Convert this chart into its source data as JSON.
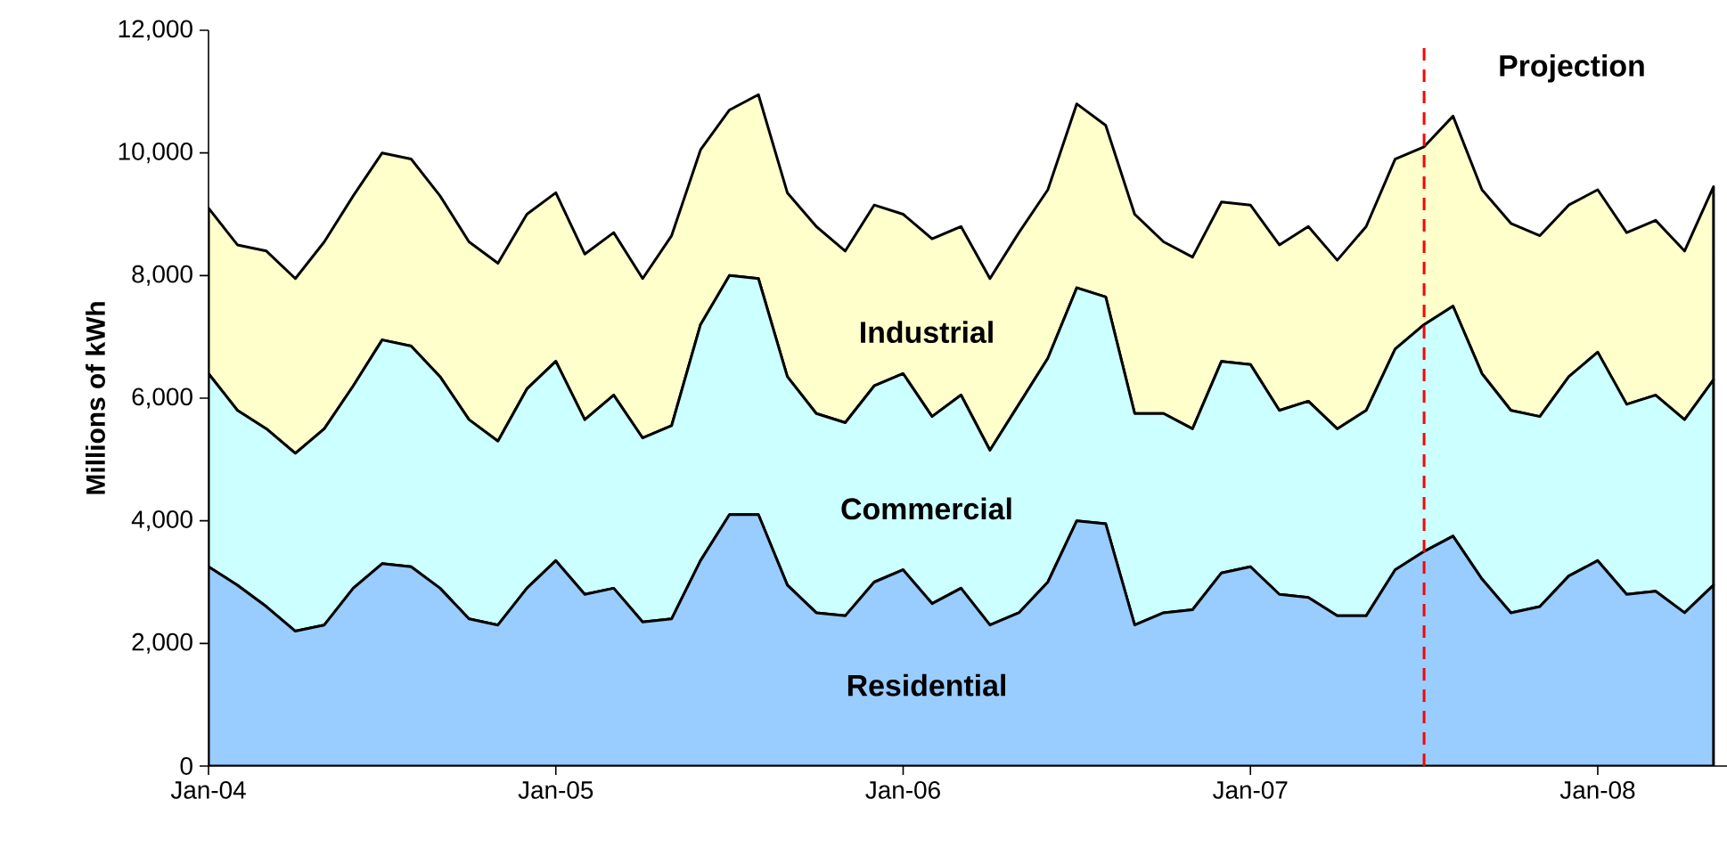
{
  "chart_data": {
    "type": "area",
    "stacked": true,
    "ylabel": "Millions of kWh",
    "legend": false,
    "grid": false,
    "marker": "none",
    "line_style": "solid",
    "x": [
      "2004-01",
      "2004-02",
      "2004-03",
      "2004-04",
      "2004-05",
      "2004-06",
      "2004-07",
      "2004-08",
      "2004-09",
      "2004-10",
      "2004-11",
      "2004-12",
      "2005-01",
      "2005-02",
      "2005-03",
      "2005-04",
      "2005-05",
      "2005-06",
      "2005-07",
      "2005-08",
      "2005-09",
      "2005-10",
      "2005-11",
      "2005-12",
      "2006-01",
      "2006-02",
      "2006-03",
      "2006-04",
      "2006-05",
      "2006-06",
      "2006-07",
      "2006-08",
      "2006-09",
      "2006-10",
      "2006-11",
      "2006-12",
      "2007-01",
      "2007-02",
      "2007-03",
      "2007-04",
      "2007-05",
      "2007-06",
      "2007-07",
      "2007-08",
      "2007-09",
      "2007-10",
      "2007-11",
      "2007-12",
      "2008-01",
      "2008-02",
      "2008-03",
      "2008-04",
      "2008-05"
    ],
    "xlim": [
      "2004-01",
      "2008-05-15"
    ],
    "xticks": [
      {
        "value": "2004-01",
        "label": "Jan-04"
      },
      {
        "value": "2005-01",
        "label": "Jan-05"
      },
      {
        "value": "2006-01",
        "label": "Jan-06"
      },
      {
        "value": "2007-01",
        "label": "Jan-07"
      },
      {
        "value": "2008-01",
        "label": "Jan-08"
      }
    ],
    "ylim": [
      0,
      12000
    ],
    "yticks": [
      0,
      {
        "value": 2000,
        "label": "2,000"
      },
      {
        "value": 4000,
        "label": "4,000"
      },
      {
        "value": 6000,
        "label": "6,000"
      },
      {
        "value": 8000,
        "label": "8,000"
      },
      {
        "value": 10000,
        "label": "10,000"
      },
      {
        "value": 12000,
        "label": "12,000"
      }
    ],
    "series": [
      {
        "name": "Residential",
        "color": "#99ccff",
        "values": [
          3250,
          2950,
          2600,
          2200,
          2300,
          2900,
          3300,
          3250,
          2900,
          2400,
          2300,
          2900,
          3350,
          2800,
          2900,
          2350,
          2400,
          3350,
          4100,
          4100,
          2950,
          2500,
          2450,
          3000,
          3200,
          2650,
          2900,
          2300,
          2500,
          3000,
          4000,
          3950,
          2300,
          2500,
          2550,
          3150,
          3250,
          2800,
          2750,
          2450,
          2450,
          3200,
          3500,
          3750,
          3050,
          2500,
          2600,
          3100,
          3350,
          2800,
          2850,
          2500,
          2950
        ]
      },
      {
        "name": "Commercial",
        "color": "#ccffff",
        "values": [
          3150,
          2850,
          2900,
          2900,
          3200,
          3300,
          3650,
          3600,
          3450,
          3250,
          3000,
          3250,
          3250,
          2850,
          3150,
          3000,
          3150,
          3850,
          3900,
          3850,
          3400,
          3250,
          3150,
          3200,
          3200,
          3050,
          3150,
          2850,
          3400,
          3650,
          3800,
          3700,
          3450,
          3250,
          2950,
          3450,
          3300,
          3000,
          3200,
          3050,
          3350,
          3600,
          3700,
          3750,
          3350,
          3300,
          3100,
          3250,
          3400,
          3100,
          3200,
          3150,
          3350
        ]
      },
      {
        "name": "Industrial",
        "color": "#ffffcc",
        "values": [
          2700,
          2700,
          2900,
          2850,
          3050,
          3100,
          3050,
          3050,
          2950,
          2900,
          2900,
          2850,
          2750,
          2700,
          2650,
          2600,
          3100,
          2850,
          2700,
          3000,
          3000,
          3050,
          2800,
          2950,
          2600,
          2900,
          2750,
          2800,
          2800,
          2750,
          3000,
          2800,
          3250,
          2800,
          2800,
          2600,
          2600,
          2700,
          2850,
          2750,
          3000,
          3100,
          2900,
          3100,
          3000,
          3050,
          2950,
          2800,
          2650,
          2800,
          2850,
          2750,
          3150
        ]
      }
    ],
    "ref_lines": [
      {
        "axis": "x",
        "value": "2007-07",
        "label": "Projection",
        "color": "#ff0000",
        "line_style": "dashed"
      }
    ]
  }
}
